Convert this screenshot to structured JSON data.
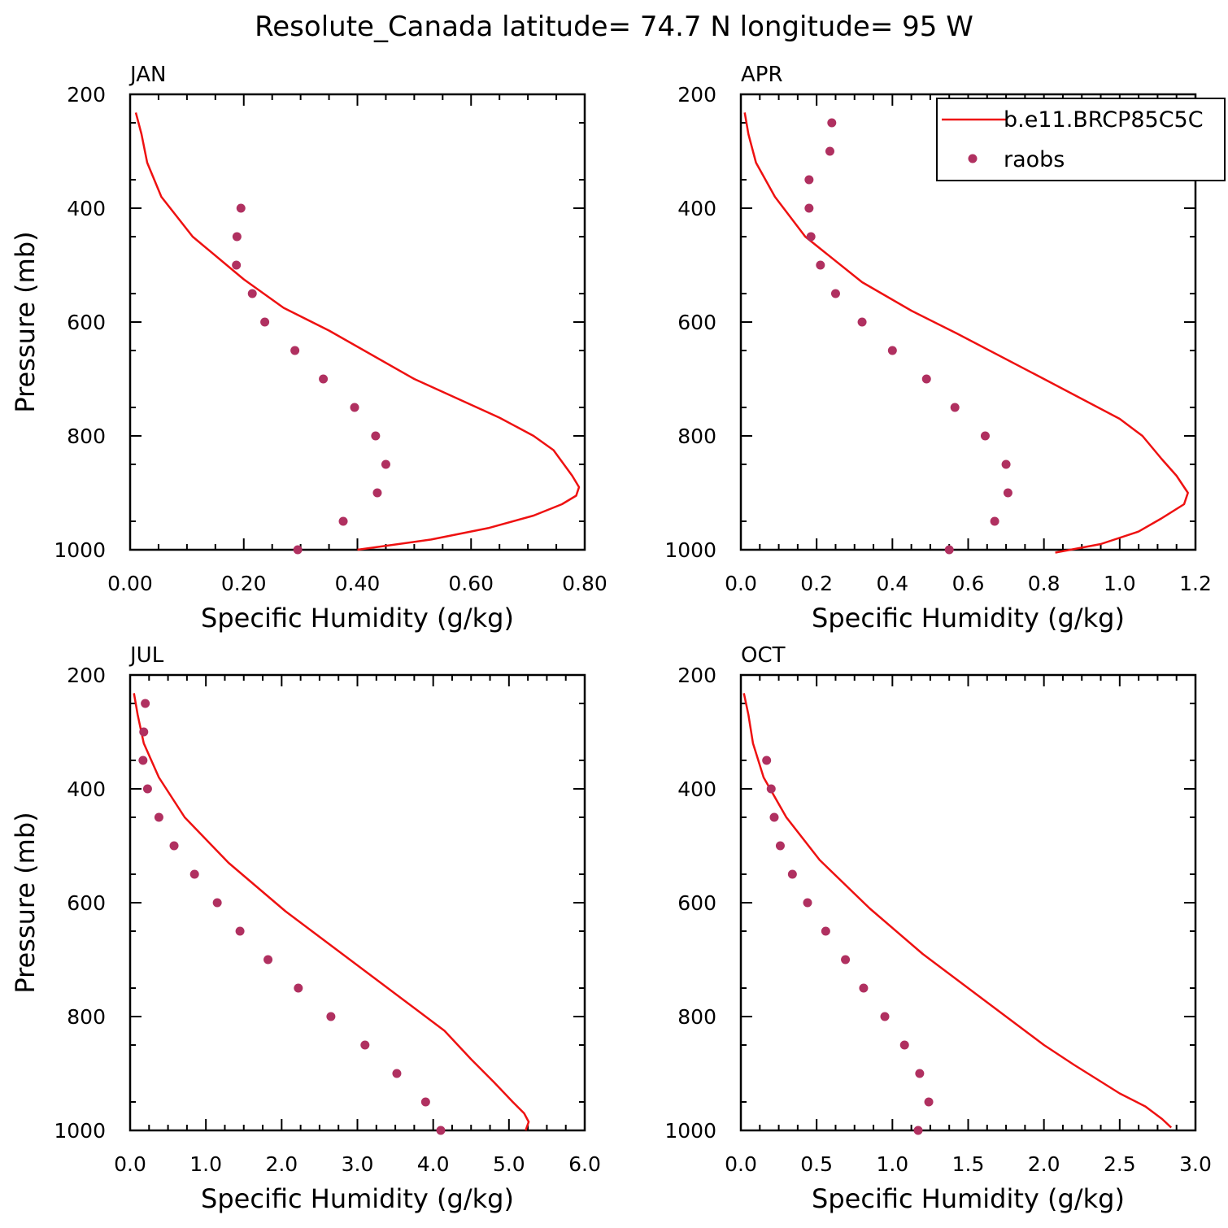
{
  "title": "Resolute_Canada  latitude= 74.7 N longitude= 95 W",
  "colors": {
    "model": "#ee1111",
    "obs": "#b03060",
    "axis": "#000000"
  },
  "legend": {
    "model": "b.e11.BRCP85C5C",
    "obs": "raobs",
    "placement": "top-right"
  },
  "chart_data": [
    {
      "type": "line",
      "panel": "JAN",
      "xlabel": "Specific Humidity (g/kg)",
      "ylabel": "Pressure (mb)",
      "xlim": [
        0,
        0.8
      ],
      "ylim": [
        200,
        1000
      ],
      "y_inverted": true,
      "xticks": [
        "0.00",
        "0.20",
        "0.40",
        "0.60",
        "0.80"
      ],
      "yticks": [
        "200",
        "400",
        "600",
        "800",
        "1000"
      ],
      "series": [
        {
          "role": "model",
          "points": [
            [
              0.01,
              232
            ],
            [
              0.02,
              270
            ],
            [
              0.03,
              320
            ],
            [
              0.055,
              380
            ],
            [
              0.11,
              450
            ],
            [
              0.2,
              525
            ],
            [
              0.27,
              575
            ],
            [
              0.35,
              615
            ],
            [
              0.5,
              700
            ],
            [
              0.65,
              768
            ],
            [
              0.71,
              800
            ],
            [
              0.745,
              825
            ],
            [
              0.778,
              870
            ],
            [
              0.79,
              890
            ],
            [
              0.785,
              905
            ],
            [
              0.76,
              920
            ],
            [
              0.71,
              940
            ],
            [
              0.63,
              962
            ],
            [
              0.53,
              982
            ],
            [
              0.4,
              1000
            ]
          ]
        },
        {
          "role": "obs",
          "points": [
            [
              0.195,
              400
            ],
            [
              0.188,
              450
            ],
            [
              0.187,
              500
            ],
            [
              0.215,
              550
            ],
            [
              0.237,
              600
            ],
            [
              0.29,
              650
            ],
            [
              0.34,
              700
            ],
            [
              0.395,
              750
            ],
            [
              0.432,
              800
            ],
            [
              0.45,
              850
            ],
            [
              0.435,
              900
            ],
            [
              0.375,
              950
            ],
            [
              0.295,
              1000
            ]
          ]
        }
      ]
    },
    {
      "type": "line",
      "panel": "APR",
      "xlabel": "Specific Humidity (g/kg)",
      "ylabel": "",
      "xlim": [
        0,
        1.2
      ],
      "ylim": [
        200,
        1000
      ],
      "y_inverted": true,
      "xticks": [
        "0.0",
        "0.2",
        "0.4",
        "0.6",
        "0.8",
        "1.0",
        "1.2"
      ],
      "yticks": [
        "200",
        "400",
        "600",
        "800",
        "1000"
      ],
      "series": [
        {
          "role": "model",
          "points": [
            [
              0.01,
              232
            ],
            [
              0.02,
              270
            ],
            [
              0.04,
              320
            ],
            [
              0.09,
              380
            ],
            [
              0.17,
              450
            ],
            [
              0.32,
              530
            ],
            [
              0.45,
              580
            ],
            [
              0.57,
              620
            ],
            [
              0.8,
              700
            ],
            [
              1.0,
              770
            ],
            [
              1.06,
              800
            ],
            [
              1.11,
              840
            ],
            [
              1.15,
              870
            ],
            [
              1.18,
              900
            ],
            [
              1.17,
              920
            ],
            [
              1.11,
              945
            ],
            [
              1.05,
              968
            ],
            [
              0.95,
              990
            ],
            [
              0.83,
              1005
            ]
          ]
        },
        {
          "role": "obs",
          "points": [
            [
              0.24,
              250
            ],
            [
              0.235,
              300
            ],
            [
              0.18,
              350
            ],
            [
              0.18,
              400
            ],
            [
              0.185,
              450
            ],
            [
              0.21,
              500
            ],
            [
              0.25,
              550
            ],
            [
              0.32,
              600
            ],
            [
              0.4,
              650
            ],
            [
              0.49,
              700
            ],
            [
              0.565,
              750
            ],
            [
              0.645,
              800
            ],
            [
              0.7,
              850
            ],
            [
              0.705,
              900
            ],
            [
              0.67,
              950
            ],
            [
              0.55,
              1000
            ]
          ]
        }
      ]
    },
    {
      "type": "line",
      "panel": "JUL",
      "xlabel": "Specific Humidity (g/kg)",
      "ylabel": "Pressure (mb)",
      "xlim": [
        0,
        6
      ],
      "ylim": [
        200,
        1000
      ],
      "y_inverted": true,
      "xticks": [
        "0.0",
        "1.0",
        "2.0",
        "3.0",
        "4.0",
        "5.0",
        "6.0"
      ],
      "yticks": [
        "200",
        "400",
        "600",
        "800",
        "1000"
      ],
      "series": [
        {
          "role": "model",
          "points": [
            [
              0.05,
              232
            ],
            [
              0.1,
              270
            ],
            [
              0.18,
              320
            ],
            [
              0.38,
              380
            ],
            [
              0.72,
              450
            ],
            [
              1.3,
              530
            ],
            [
              2.05,
              615
            ],
            [
              2.9,
              700
            ],
            [
              3.6,
              770
            ],
            [
              4.15,
              825
            ],
            [
              4.5,
              875
            ],
            [
              4.8,
              915
            ],
            [
              5.05,
              950
            ],
            [
              5.2,
              970
            ],
            [
              5.26,
              985
            ],
            [
              5.22,
              1000
            ]
          ]
        },
        {
          "role": "obs",
          "points": [
            [
              0.2,
              250
            ],
            [
              0.18,
              300
            ],
            [
              0.17,
              350
            ],
            [
              0.23,
              400
            ],
            [
              0.38,
              450
            ],
            [
              0.58,
              500
            ],
            [
              0.85,
              550
            ],
            [
              1.15,
              600
            ],
            [
              1.45,
              650
            ],
            [
              1.82,
              700
            ],
            [
              2.22,
              750
            ],
            [
              2.65,
              800
            ],
            [
              3.1,
              850
            ],
            [
              3.52,
              900
            ],
            [
              3.9,
              950
            ],
            [
              4.1,
              1000
            ]
          ]
        }
      ]
    },
    {
      "type": "line",
      "panel": "OCT",
      "xlabel": "Specific Humidity (g/kg)",
      "ylabel": "",
      "xlim": [
        0,
        3
      ],
      "ylim": [
        200,
        1000
      ],
      "y_inverted": true,
      "xticks": [
        "0.0",
        "0.5",
        "1.0",
        "1.5",
        "2.0",
        "2.5",
        "3.0"
      ],
      "yticks": [
        "200",
        "400",
        "600",
        "800",
        "1000"
      ],
      "series": [
        {
          "role": "model",
          "points": [
            [
              0.02,
              232
            ],
            [
              0.05,
              270
            ],
            [
              0.08,
              320
            ],
            [
              0.15,
              380
            ],
            [
              0.3,
              450
            ],
            [
              0.52,
              525
            ],
            [
              0.85,
              610
            ],
            [
              1.2,
              690
            ],
            [
              1.6,
              770
            ],
            [
              2.0,
              850
            ],
            [
              2.2,
              885
            ],
            [
              2.35,
              910
            ],
            [
              2.5,
              935
            ],
            [
              2.67,
              958
            ],
            [
              2.78,
              980
            ],
            [
              2.84,
              995
            ]
          ]
        },
        {
          "role": "obs",
          "points": [
            [
              0.17,
              350
            ],
            [
              0.2,
              400
            ],
            [
              0.22,
              450
            ],
            [
              0.26,
              500
            ],
            [
              0.34,
              550
            ],
            [
              0.44,
              600
            ],
            [
              0.56,
              650
            ],
            [
              0.69,
              700
            ],
            [
              0.81,
              750
            ],
            [
              0.95,
              800
            ],
            [
              1.08,
              850
            ],
            [
              1.18,
              900
            ],
            [
              1.24,
              950
            ],
            [
              1.17,
              1000
            ]
          ]
        }
      ]
    }
  ]
}
